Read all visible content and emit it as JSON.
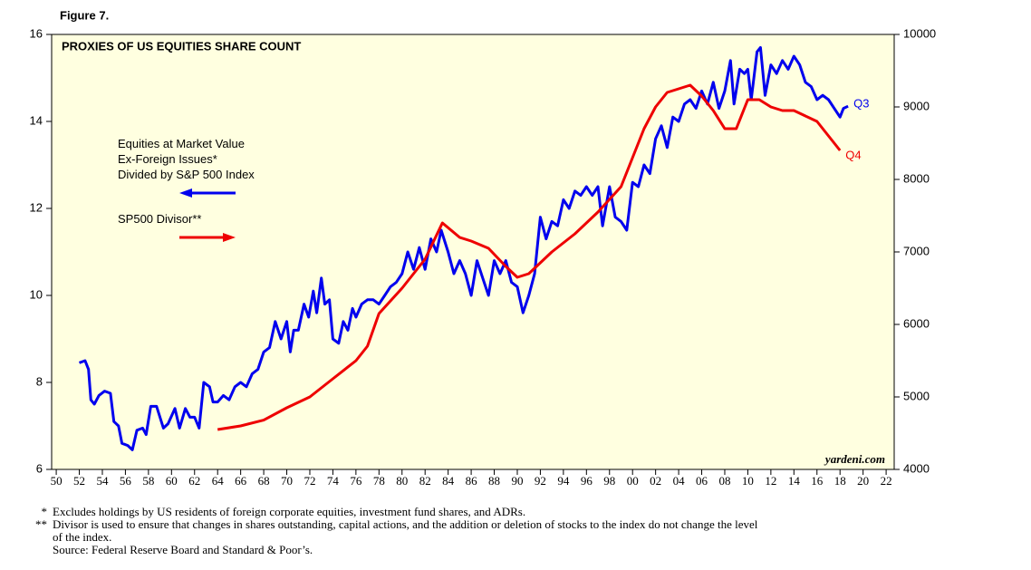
{
  "figure_label": "Figure 7.",
  "chart_data": {
    "type": "line",
    "title": "PROXIES OF US EQUITIES SHARE COUNT",
    "source": "yardeni.com",
    "xlim": [
      1949.6,
      2022.7
    ],
    "xticks": [
      {
        "value": 1950,
        "label": "50"
      },
      {
        "value": 1952,
        "label": "52"
      },
      {
        "value": 1954,
        "label": "54"
      },
      {
        "value": 1956,
        "label": "56"
      },
      {
        "value": 1958,
        "label": "58"
      },
      {
        "value": 1960,
        "label": "60"
      },
      {
        "value": 1962,
        "label": "62"
      },
      {
        "value": 1964,
        "label": "64"
      },
      {
        "value": 1966,
        "label": "66"
      },
      {
        "value": 1968,
        "label": "68"
      },
      {
        "value": 1970,
        "label": "70"
      },
      {
        "value": 1972,
        "label": "72"
      },
      {
        "value": 1974,
        "label": "74"
      },
      {
        "value": 1976,
        "label": "76"
      },
      {
        "value": 1978,
        "label": "78"
      },
      {
        "value": 1980,
        "label": "80"
      },
      {
        "value": 1982,
        "label": "82"
      },
      {
        "value": 1984,
        "label": "84"
      },
      {
        "value": 1986,
        "label": "86"
      },
      {
        "value": 1988,
        "label": "88"
      },
      {
        "value": 1990,
        "label": "90"
      },
      {
        "value": 1992,
        "label": "92"
      },
      {
        "value": 1994,
        "label": "94"
      },
      {
        "value": 1996,
        "label": "96"
      },
      {
        "value": 1998,
        "label": "98"
      },
      {
        "value": 2000,
        "label": "00"
      },
      {
        "value": 2002,
        "label": "02"
      },
      {
        "value": 2004,
        "label": "04"
      },
      {
        "value": 2006,
        "label": "06"
      },
      {
        "value": 2008,
        "label": "08"
      },
      {
        "value": 2010,
        "label": "10"
      },
      {
        "value": 2012,
        "label": "12"
      },
      {
        "value": 2014,
        "label": "14"
      },
      {
        "value": 2016,
        "label": "16"
      },
      {
        "value": 2018,
        "label": "18"
      },
      {
        "value": 2020,
        "label": "20"
      },
      {
        "value": 2022,
        "label": "22"
      }
    ],
    "ylim": [
      6,
      16
    ],
    "yticks": [
      6,
      8,
      10,
      12,
      14,
      16
    ],
    "y2lim": [
      4000,
      10000
    ],
    "y2ticks": [
      4000,
      5000,
      6000,
      7000,
      8000,
      9000,
      10000
    ],
    "series": [
      {
        "name": "Equities at Market Value\nEx-Foreign Issues*\nDivided by S&P 500 Index",
        "color": "#0000ee",
        "end_label": "Q3",
        "legend_arrow": "left",
        "x": [
          1952.0,
          1952.5,
          1952.8,
          1953.0,
          1953.3,
          1953.7,
          1954.2,
          1954.7,
          1955.0,
          1955.4,
          1955.7,
          1956.2,
          1956.6,
          1957.0,
          1957.5,
          1957.8,
          1958.2,
          1958.7,
          1959.3,
          1959.7,
          1960.3,
          1960.7,
          1961.2,
          1961.6,
          1962.0,
          1962.4,
          1962.8,
          1963.3,
          1963.6,
          1964.0,
          1964.5,
          1965.0,
          1965.5,
          1966.0,
          1966.5,
          1967.0,
          1967.5,
          1968.0,
          1968.5,
          1969.0,
          1969.5,
          1970.0,
          1970.3,
          1970.6,
          1971.0,
          1971.5,
          1971.9,
          1972.3,
          1972.6,
          1973.0,
          1973.3,
          1973.7,
          1974.0,
          1974.5,
          1974.9,
          1975.3,
          1975.7,
          1976.0,
          1976.5,
          1977.0,
          1977.5,
          1978.0,
          1978.5,
          1979.0,
          1979.5,
          1980.0,
          1980.5,
          1981.0,
          1981.5,
          1982.0,
          1982.5,
          1983.0,
          1983.4,
          1984.0,
          1984.5,
          1985.0,
          1985.5,
          1986.0,
          1986.5,
          1987.0,
          1987.5,
          1988.0,
          1988.5,
          1989.0,
          1989.5,
          1990.0,
          1990.5,
          1991.0,
          1991.5,
          1992.0,
          1992.5,
          1993.0,
          1993.5,
          1994.0,
          1994.5,
          1995.0,
          1995.5,
          1996.0,
          1996.5,
          1997.0,
          1997.4,
          1998.0,
          1998.5,
          1999.0,
          1999.5,
          2000.0,
          2000.5,
          2001.0,
          2001.5,
          2002.0,
          2002.5,
          2003.0,
          2003.5,
          2004.0,
          2004.5,
          2005.0,
          2005.5,
          2006.0,
          2006.5,
          2007.0,
          2007.5,
          2008.0,
          2008.5,
          2008.8,
          2009.3,
          2009.7,
          2010.0,
          2010.3,
          2010.8,
          2011.1,
          2011.5,
          2012.0,
          2012.5,
          2013.0,
          2013.5,
          2014.0,
          2014.5,
          2015.0,
          2015.5,
          2016.0,
          2016.5,
          2017.0,
          2017.5,
          2018.0,
          2018.3,
          2018.7
        ],
        "values": [
          8.45,
          8.5,
          8.3,
          7.6,
          7.5,
          7.7,
          7.8,
          7.75,
          7.1,
          7.0,
          6.6,
          6.55,
          6.45,
          6.9,
          6.95,
          6.8,
          7.45,
          7.45,
          6.95,
          7.05,
          7.4,
          6.95,
          7.4,
          7.2,
          7.2,
          6.95,
          8.0,
          7.9,
          7.55,
          7.55,
          7.7,
          7.6,
          7.9,
          8.0,
          7.9,
          8.2,
          8.3,
          8.7,
          8.8,
          9.4,
          9.0,
          9.4,
          8.7,
          9.2,
          9.2,
          9.8,
          9.5,
          10.1,
          9.6,
          10.4,
          9.8,
          9.9,
          9.0,
          8.9,
          9.4,
          9.2,
          9.7,
          9.5,
          9.8,
          9.9,
          9.9,
          9.8,
          10.0,
          10.2,
          10.3,
          10.5,
          11.0,
          10.6,
          11.1,
          10.6,
          11.3,
          11.0,
          11.5,
          11.0,
          10.5,
          10.8,
          10.5,
          10.0,
          10.8,
          10.4,
          10.0,
          10.8,
          10.5,
          10.8,
          10.3,
          10.2,
          9.6,
          10.0,
          10.5,
          11.8,
          11.3,
          11.7,
          11.6,
          12.2,
          12.0,
          12.4,
          12.3,
          12.5,
          12.3,
          12.5,
          11.6,
          12.5,
          11.8,
          11.7,
          11.5,
          12.6,
          12.5,
          13.0,
          12.8,
          13.6,
          13.9,
          13.4,
          14.1,
          14.0,
          14.4,
          14.5,
          14.3,
          14.7,
          14.4,
          14.9,
          14.3,
          14.7,
          15.4,
          14.4,
          15.2,
          15.1,
          15.2,
          14.5,
          15.6,
          15.7,
          14.6,
          15.3,
          15.1,
          15.4,
          15.2,
          15.5,
          15.3,
          14.9,
          14.8,
          14.5,
          14.6,
          14.5,
          14.3,
          14.1,
          14.3,
          14.35
        ]
      },
      {
        "name": "SP500 Divisor**",
        "color": "#ee0000",
        "axis": "y2",
        "end_label": "Q4",
        "legend_arrow": "right",
        "x": [
          1964,
          1966,
          1968,
          1970,
          1972,
          1974,
          1976,
          1977,
          1978,
          1980,
          1982,
          1983.5,
          1985,
          1986,
          1987.5,
          1989,
          1990,
          1991,
          1993,
          1995,
          1997,
          1999,
          2000,
          2001,
          2002,
          2003,
          2005,
          2006,
          2007,
          2008,
          2009,
          2010,
          2011,
          2012,
          2013,
          2014,
          2016,
          2017,
          2018
        ],
        "values": [
          4550,
          4600,
          4680,
          4850,
          5000,
          5250,
          5500,
          5700,
          6150,
          6500,
          6900,
          7400,
          7200,
          7150,
          7050,
          6800,
          6650,
          6700,
          7000,
          7250,
          7550,
          7900,
          8300,
          8700,
          9000,
          9200,
          9300,
          9150,
          8950,
          8700,
          8700,
          9100,
          9100,
          9000,
          8950,
          8950,
          8800,
          8600,
          8400
        ]
      }
    ]
  },
  "footnotes": [
    {
      "mark": "*",
      "lines": [
        "Excludes holdings by US residents of foreign corporate equities, investment fund shares, and ADRs."
      ]
    },
    {
      "mark": "**",
      "lines": [
        "Divisor is used to ensure that changes in shares outstanding, capital actions, and the addition or deletion of stocks to the index do not change the level",
        "of the index."
      ]
    },
    {
      "lines": [
        "Source: Federal Reserve Board and Standard & Poor’s."
      ]
    }
  ]
}
